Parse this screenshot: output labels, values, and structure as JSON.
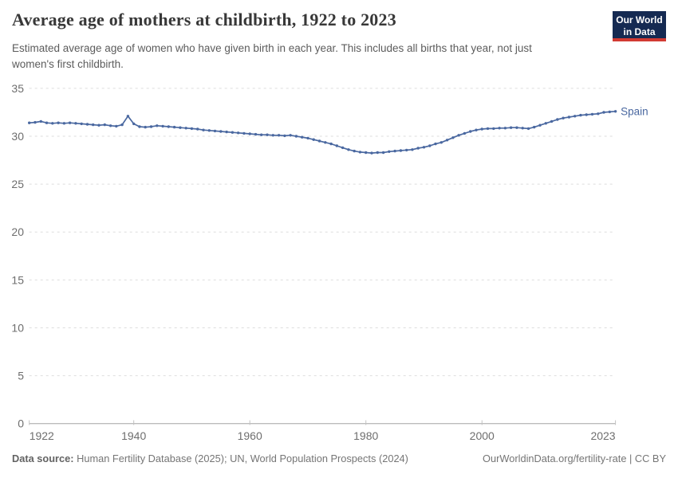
{
  "header": {
    "title": "Average age of mothers at childbirth, 1922 to 2023",
    "subtitle": "Estimated average age of women who have given birth in each year. This includes all births that year, not just\nwomen's first childbirth.",
    "logo": {
      "line1": "Our World",
      "line2": "in Data"
    }
  },
  "chart_data": {
    "type": "line",
    "title": "Average age of mothers at childbirth, 1922 to 2023",
    "xlabel": "",
    "ylabel": "",
    "xlim": [
      1922,
      2023
    ],
    "ylim": [
      0,
      35
    ],
    "x_ticks": [
      1922,
      1940,
      1960,
      1980,
      2000,
      2023
    ],
    "y_ticks": [
      0,
      5,
      10,
      15,
      20,
      25,
      30,
      35
    ],
    "grid": "horizontal-dashed",
    "legend_position": "end-of-line",
    "series": [
      {
        "name": "Spain",
        "color": "#4A68A0",
        "start_year": 1922,
        "end_year": 2023,
        "values": [
          31.4,
          31.45,
          31.55,
          31.4,
          31.35,
          31.4,
          31.35,
          31.4,
          31.35,
          31.3,
          31.25,
          31.2,
          31.15,
          31.2,
          31.1,
          31.05,
          31.2,
          32.1,
          31.3,
          31.0,
          30.95,
          31.0,
          31.1,
          31.05,
          31.0,
          30.95,
          30.9,
          30.85,
          30.8,
          30.75,
          30.65,
          30.6,
          30.55,
          30.5,
          30.45,
          30.4,
          30.35,
          30.3,
          30.25,
          30.2,
          30.15,
          30.15,
          30.1,
          30.1,
          30.05,
          30.1,
          30.0,
          29.9,
          29.8,
          29.65,
          29.5,
          29.35,
          29.2,
          29.0,
          28.8,
          28.6,
          28.45,
          28.35,
          28.3,
          28.25,
          28.3,
          28.3,
          28.4,
          28.45,
          28.5,
          28.55,
          28.6,
          28.75,
          28.85,
          29.0,
          29.2,
          29.35,
          29.6,
          29.85,
          30.1,
          30.3,
          30.5,
          30.65,
          30.75,
          30.8,
          30.8,
          30.85,
          30.85,
          30.9,
          30.9,
          30.85,
          30.8,
          30.95,
          31.15,
          31.35,
          31.55,
          31.75,
          31.9,
          32.0,
          32.1,
          32.2,
          32.25,
          32.3,
          32.35,
          32.5,
          32.55,
          32.6
        ]
      }
    ]
  },
  "footer": {
    "datasource_label": "Data source:",
    "datasource_text": " Human Fertility Database (2025); UN, World Population Prospects (2024)",
    "link_text": "OurWorldinData.org/fertility-rate | CC BY"
  },
  "colors": {
    "series_blue": "#4A68A0",
    "grid": "#DDDDDD",
    "axis_line": "#A3A3A3",
    "tick_mark": "#C2C2C2",
    "tick_label": "#6E6E6E",
    "title_text": "#383838",
    "subtitle_text": "#5C5C5C",
    "footer_text": "#757575",
    "logo_bg": "#152A52",
    "logo_accent": "#D23B33"
  }
}
